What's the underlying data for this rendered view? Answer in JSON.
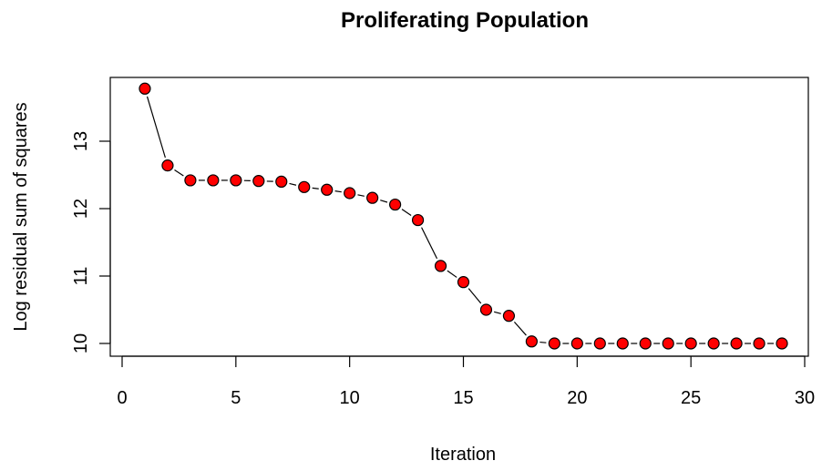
{
  "chart_data": {
    "type": "line",
    "title": "Proliferating Population",
    "xlabel": "Iteration",
    "ylabel": "Log residual sum of squares",
    "xlim": [
      0,
      30
    ],
    "ylim": [
      10,
      13.8
    ],
    "xticks": [
      "0",
      "5",
      "10",
      "15",
      "20",
      "25",
      "30"
    ],
    "yticks": [
      "10",
      "11",
      "12",
      "13"
    ],
    "grid": false,
    "line_style": "both (points and line segments)",
    "point_fill": "#ff0000",
    "point_edge": "#000000",
    "series": [
      {
        "x": [
          1,
          2,
          3,
          4,
          5,
          6,
          7,
          8,
          9,
          10,
          11,
          12,
          13,
          14,
          15,
          16,
          17,
          18,
          19,
          20,
          21,
          22,
          23,
          24,
          25,
          26,
          27,
          28,
          29
        ],
        "y": [
          13.78,
          12.64,
          12.42,
          12.42,
          12.42,
          12.41,
          12.4,
          12.32,
          12.28,
          12.23,
          12.16,
          12.06,
          11.83,
          11.15,
          10.91,
          10.5,
          10.41,
          10.03,
          10.0,
          10.0,
          10.0,
          10.0,
          10.0,
          10.0,
          10.0,
          10.0,
          10.0,
          10.0,
          10.0
        ]
      }
    ]
  }
}
